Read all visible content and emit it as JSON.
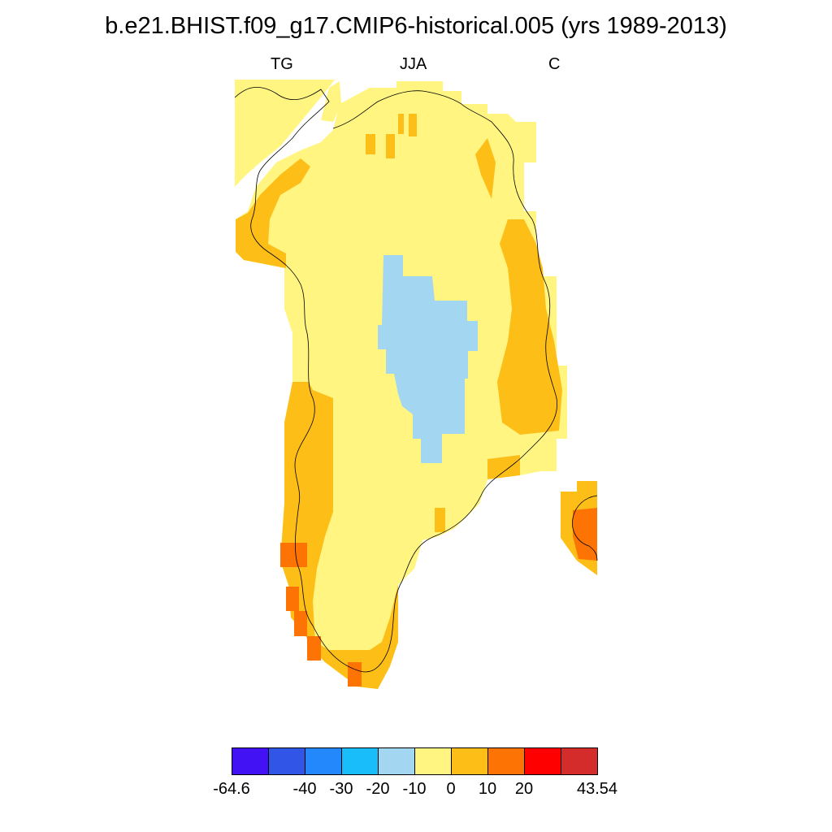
{
  "title": "b.e21.BHIST.f09_g17.CMIP6-historical.005 (yrs 1989-2013)",
  "subtitles": {
    "left": "TG",
    "center": "JJA",
    "right": "C"
  },
  "colorbar": {
    "colors": [
      "#4212f5",
      "#3155e6",
      "#2388fb",
      "#18bdfa",
      "#a3d6f0",
      "#fff580",
      "#fdbe18",
      "#fd7405",
      "#fe0000",
      "#d42b2b"
    ],
    "labels": [
      "-64.6",
      "",
      "-40",
      "-30",
      "-20",
      "-10",
      "0",
      "10",
      "20",
      "",
      "43.54"
    ]
  },
  "map_colors": {
    "band_0_10": "#fff580",
    "band_10_20": "#fdbe18",
    "band_20_30": "#fd7405",
    "band_m10_0": "#a3d6f0",
    "coastline": "#000000"
  }
}
